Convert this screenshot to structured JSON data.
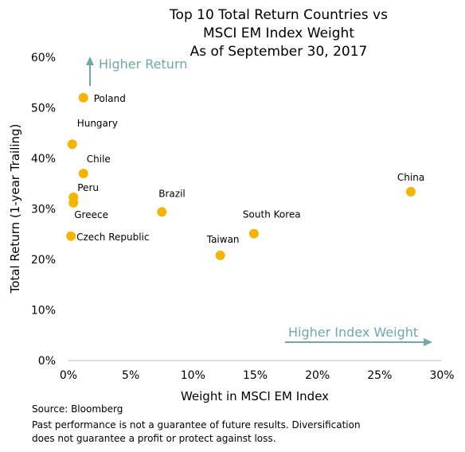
{
  "chart_data": {
    "type": "scatter",
    "title_lines": [
      "Top 10 Total Return Countries vs",
      "MSCI EM Index Weight",
      "As of September 30, 2017"
    ],
    "xlabel": "Weight in MSCI EM Index",
    "ylabel": "Total Return (1-year Trailing)",
    "xlim": [
      0,
      30
    ],
    "ylim": [
      0,
      60
    ],
    "x_ticks": [
      0,
      5,
      10,
      15,
      20,
      25,
      30
    ],
    "y_ticks": [
      0,
      10,
      20,
      30,
      40,
      50,
      60
    ],
    "x_tick_labels": [
      "0%",
      "5%",
      "10%",
      "15%",
      "20%",
      "25%",
      "30%"
    ],
    "y_tick_labels": [
      "0%",
      "10%",
      "20%",
      "30%",
      "40%",
      "50%",
      "60%"
    ],
    "grid": false,
    "marker_color": "#f5b400",
    "annotation_color": "#6fa8a8",
    "points": [
      {
        "label": "Poland",
        "x": 1.2,
        "y": 52.0
      },
      {
        "label": "Hungary",
        "x": 0.3,
        "y": 42.8
      },
      {
        "label": "Chile",
        "x": 1.2,
        "y": 37.0
      },
      {
        "label": "Peru",
        "x": 0.4,
        "y": 32.3
      },
      {
        "label": "Greece",
        "x": 0.4,
        "y": 31.2
      },
      {
        "label": "Czech Republic",
        "x": 0.2,
        "y": 24.6
      },
      {
        "label": "Brazil",
        "x": 7.5,
        "y": 29.4
      },
      {
        "label": "Taiwan",
        "x": 12.2,
        "y": 20.8
      },
      {
        "label": "South Korea",
        "x": 14.9,
        "y": 25.1
      },
      {
        "label": "China",
        "x": 27.5,
        "y": 33.4
      }
    ],
    "annotations": {
      "higher_return": "Higher Return",
      "higher_weight": "Higher Index Weight"
    }
  },
  "footer": {
    "source": "Source: Bloomberg",
    "disclaimer_line1": "Past performance is not a guarantee of future results. Diversification",
    "disclaimer_line2": "does not guarantee a profit or protect against loss."
  }
}
